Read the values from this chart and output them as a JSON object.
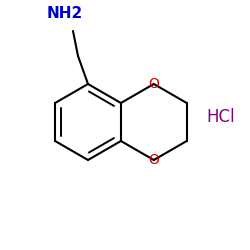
{
  "background": "#ffffff",
  "bond_color": "#000000",
  "nh2_color": "#0000cc",
  "oxygen_color": "#cc0000",
  "hcl_color": "#800080",
  "hcl_text": "HCl",
  "nh2_text": "NH2",
  "bond_lw": 1.5,
  "inner_lw": 1.4,
  "ring_r": 38
}
